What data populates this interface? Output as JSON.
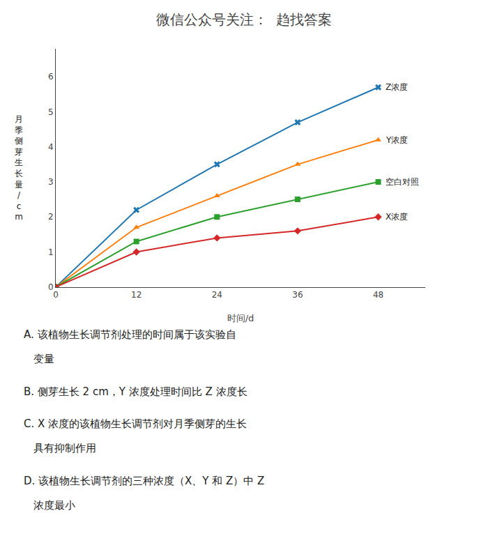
{
  "chart_data": {
    "type": "line",
    "title": "微信公众号关注：  趋找答案",
    "x": [
      0,
      12,
      24,
      36,
      48
    ],
    "series": [
      {
        "name": "Z浓度",
        "values": [
          0,
          2.2,
          3.5,
          4.7,
          5.7
        ],
        "marker": "x"
      },
      {
        "name": "Y浓度",
        "values": [
          0,
          1.7,
          2.6,
          3.5,
          4.2
        ],
        "marker": "triangle"
      },
      {
        "name": "空白对照",
        "values": [
          0,
          1.3,
          2.0,
          2.5,
          3.0
        ],
        "marker": "square"
      },
      {
        "name": "X浓度",
        "values": [
          0,
          1.0,
          1.4,
          1.6,
          2.0
        ],
        "marker": "diamond"
      }
    ],
    "x_label": "时间/d",
    "y_label": "月季侧芽生长量/cm",
    "xlim": [
      0,
      55
    ],
    "ylim": [
      0,
      6.8
    ],
    "xticks": [
      0,
      12,
      24,
      36,
      48
    ],
    "yticks": [
      0,
      1,
      2,
      3,
      4,
      5,
      6
    ],
    "grid": false,
    "annotations": [
      "A. 该植物生长调节剂处理的时间属于该实验自",
      "   变量",
      "B. 侧芽生长 2 cm，Y 浓度处理时间比 Z 浓度长",
      "C. X 浓度的该植物生长调节剂对月季侧芽的生长",
      "   具有抑制作用",
      "D. 该植物生长调节剂的三种浓度（X、Y 和 Z）中 Z",
      "   浓度最小"
    ]
  }
}
